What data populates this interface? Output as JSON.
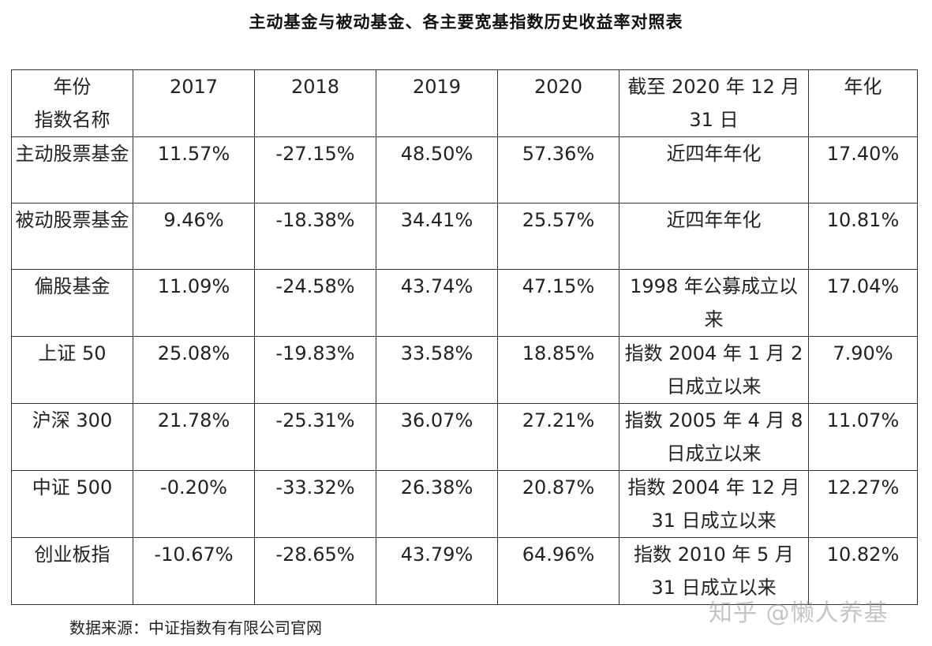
{
  "title": "主动基金与被动基金、各主要宽基指数历史收益率对照表",
  "header": {
    "corner_top": "年份",
    "corner_bottom": "指数名称",
    "years": [
      "2017",
      "2018",
      "2019",
      "2020"
    ],
    "period": "截至 2020 年 12 月 31 日",
    "annualized": "年化"
  },
  "rows": [
    {
      "name": "主动股票基金",
      "cells": [
        {
          "text": "11.57%",
          "color": ""
        },
        {
          "text": "-27.15%",
          "color": ""
        },
        {
          "text": "48.50%",
          "color": "red"
        },
        {
          "text": "57.36%",
          "color": "magenta"
        }
      ],
      "period": "近四年年化",
      "annual": {
        "text": "17.40%",
        "color": "red"
      }
    },
    {
      "name": "被动股票基金",
      "cells": [
        {
          "text": "9.46%",
          "color": ""
        },
        {
          "text": "-18.38%",
          "color": "red"
        },
        {
          "text": "34.41%",
          "color": ""
        },
        {
          "text": "25.57%",
          "color": ""
        }
      ],
      "period": "近四年年化",
      "annual": {
        "text": "10.81%",
        "color": ""
      }
    },
    {
      "name": "偏股基金",
      "cells": [
        {
          "text": "11.09%",
          "color": ""
        },
        {
          "text": "-24.58%",
          "color": ""
        },
        {
          "text": "43.74%",
          "color": ""
        },
        {
          "text": "47.15%",
          "color": ""
        }
      ],
      "period": "1998 年公募成立以来",
      "annual": {
        "text": "17.04%",
        "color": "magenta"
      }
    },
    {
      "name": "上证 50",
      "cells": [
        {
          "text": "25.08%",
          "color": "red"
        },
        {
          "text": "-19.83%",
          "color": "magenta"
        },
        {
          "text": "33.58%",
          "color": ""
        },
        {
          "text": "18.85%",
          "color": ""
        }
      ],
      "period": "指数 2004 年 1 月 2 日成立以来",
      "annual": {
        "text": "7.90%",
        "color": ""
      }
    },
    {
      "name": "沪深 300",
      "cells": [
        {
          "text": "21.78%",
          "color": "magenta"
        },
        {
          "text": "-25.31%",
          "color": ""
        },
        {
          "text": "36.07%",
          "color": ""
        },
        {
          "text": "27.21%",
          "color": ""
        }
      ],
      "period": "指数 2005 年 4 月 8 日成立以来",
      "annual": {
        "text": "11.07%",
        "color": ""
      }
    },
    {
      "name": "中证 500",
      "cells": [
        {
          "text": "-0.20%",
          "color": ""
        },
        {
          "text": "-33.32%",
          "color": ""
        },
        {
          "text": "26.38%",
          "color": ""
        },
        {
          "text": "20.87%",
          "color": ""
        }
      ],
      "period": "指数 2004 年 12 月 31 日成立以来",
      "annual": {
        "text": "12.27%",
        "color": ""
      }
    },
    {
      "name": "创业板指",
      "cells": [
        {
          "text": "-10.67%",
          "color": ""
        },
        {
          "text": "-28.65%",
          "color": ""
        },
        {
          "text": "43.79%",
          "color": "magenta"
        },
        {
          "text": "64.96%",
          "color": "red"
        }
      ],
      "period": "指数 2010 年 5 月 31 日成立以来",
      "annual": {
        "text": "10.82%",
        "color": ""
      }
    }
  ],
  "footer": "数据来源：中证指数有有限公司官网",
  "watermark": "知乎 @懒人养基",
  "colors": {
    "red": "#d0262a",
    "magenta": "#d43ad8"
  }
}
